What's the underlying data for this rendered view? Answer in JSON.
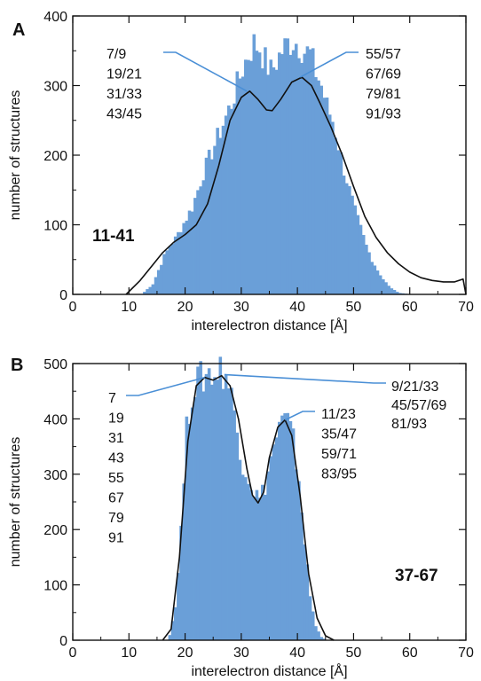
{
  "chart_data": [
    {
      "type": "histogram",
      "panel_letter": "A",
      "tag": "11-41",
      "xlabel": "interelectron distance [Å]",
      "ylabel": "number of structures",
      "xlim": [
        0,
        70
      ],
      "ylim": [
        0,
        400
      ],
      "xticks": [
        "0",
        "10",
        "20",
        "30",
        "40",
        "50",
        "60",
        "70"
      ],
      "yticks": [
        "0",
        "100",
        "200",
        "300",
        "400"
      ],
      "colors": {
        "histogram": "#6a9fd8",
        "curve": "#111111",
        "leader": "#4a8fd6"
      },
      "histogram": {
        "bin_width": 0.5,
        "x": [
          10,
          12,
          14,
          15,
          16,
          17,
          18,
          19,
          20,
          21,
          22,
          23,
          24,
          25,
          26,
          27,
          28,
          29,
          30,
          31,
          32,
          33,
          34,
          35,
          36,
          37,
          38,
          39,
          40,
          41,
          42,
          43,
          44,
          45,
          46,
          47,
          48,
          49,
          50,
          51,
          52,
          53,
          54,
          55,
          56,
          57,
          58,
          60
        ],
        "y": [
          0,
          0,
          15,
          35,
          55,
          70,
          80,
          95,
          110,
          125,
          150,
          175,
          195,
          215,
          235,
          255,
          275,
          300,
          325,
          345,
          360,
          355,
          335,
          320,
          335,
          350,
          360,
          365,
          360,
          350,
          345,
          320,
          300,
          270,
          250,
          215,
          180,
          150,
          120,
          95,
          70,
          50,
          35,
          22,
          12,
          6,
          2,
          0
        ]
      },
      "curve": {
        "x": [
          9.5,
          12,
          14,
          16,
          18,
          20,
          22,
          24,
          26,
          28,
          30,
          31.5,
          33,
          34.5,
          35.5,
          37,
          39,
          40.8,
          42.5,
          44,
          46,
          48,
          50,
          52,
          54,
          56,
          58,
          60,
          62,
          64,
          66,
          68,
          69.5,
          70
        ],
        "y": [
          0,
          20,
          40,
          60,
          75,
          86,
          100,
          130,
          185,
          250,
          283,
          292,
          280,
          265,
          264,
          280,
          305,
          312,
          300,
          275,
          240,
          200,
          155,
          112,
          82,
          60,
          44,
          32,
          24,
          20,
          18,
          18,
          22,
          0
        ]
      },
      "annotations": [
        {
          "lines": [
            "7/9",
            "19/21",
            "31/33",
            "43/45"
          ],
          "target": [
            31,
            292
          ]
        },
        {
          "lines": [
            "55/57",
            "67/69",
            "79/81",
            "91/93"
          ],
          "target": [
            40.5,
            312
          ]
        }
      ]
    },
    {
      "type": "histogram",
      "panel_letter": "B",
      "tag": "37-67",
      "xlabel": "interelectron distance [Å]",
      "ylabel": "number of structures",
      "xlim": [
        0,
        70
      ],
      "ylim": [
        0,
        500
      ],
      "xticks": [
        "0",
        "10",
        "20",
        "30",
        "40",
        "50",
        "60",
        "70"
      ],
      "yticks": [
        "0",
        "100",
        "200",
        "300",
        "400",
        "500"
      ],
      "colors": {
        "histogram": "#6a9fd8",
        "curve": "#111111",
        "leader": "#4a8fd6"
      },
      "histogram": {
        "bin_width": 0.5,
        "x": [
          17,
          18,
          19,
          20,
          21,
          22,
          23,
          24,
          25,
          26,
          27,
          28,
          29,
          30,
          31,
          32,
          33,
          34,
          35,
          36,
          37,
          38,
          39,
          40,
          41,
          42,
          43,
          44,
          45
        ],
        "y": [
          10,
          60,
          200,
          380,
          450,
          470,
          475,
          485,
          480,
          490,
          480,
          440,
          380,
          320,
          295,
          270,
          255,
          280,
          330,
          370,
          395,
          395,
          360,
          290,
          180,
          80,
          25,
          6,
          0
        ]
      },
      "curve": {
        "x": [
          16,
          17.5,
          19,
          20.5,
          22,
          23.5,
          25,
          26.5,
          28,
          29.5,
          31,
          32,
          33,
          34,
          35,
          36.5,
          37.8,
          39,
          40.5,
          42,
          43.5,
          45,
          46.5
        ],
        "y": [
          0,
          20,
          150,
          360,
          460,
          475,
          470,
          478,
          460,
          400,
          310,
          262,
          248,
          268,
          330,
          385,
          398,
          370,
          260,
          120,
          40,
          8,
          0
        ]
      },
      "annotations": [
        {
          "lines": [
            "7",
            "19",
            "31",
            "43",
            "55",
            "67",
            "79",
            "91"
          ],
          "target": [
            23.5,
            475
          ]
        },
        {
          "lines": [
            "9/21/33",
            "45/57/69",
            "81/93"
          ],
          "target": [
            27,
            480
          ]
        },
        {
          "lines": [
            "11/23",
            "35/47",
            "59/71",
            "83/95"
          ],
          "target": [
            37.8,
            398
          ]
        }
      ]
    }
  ]
}
